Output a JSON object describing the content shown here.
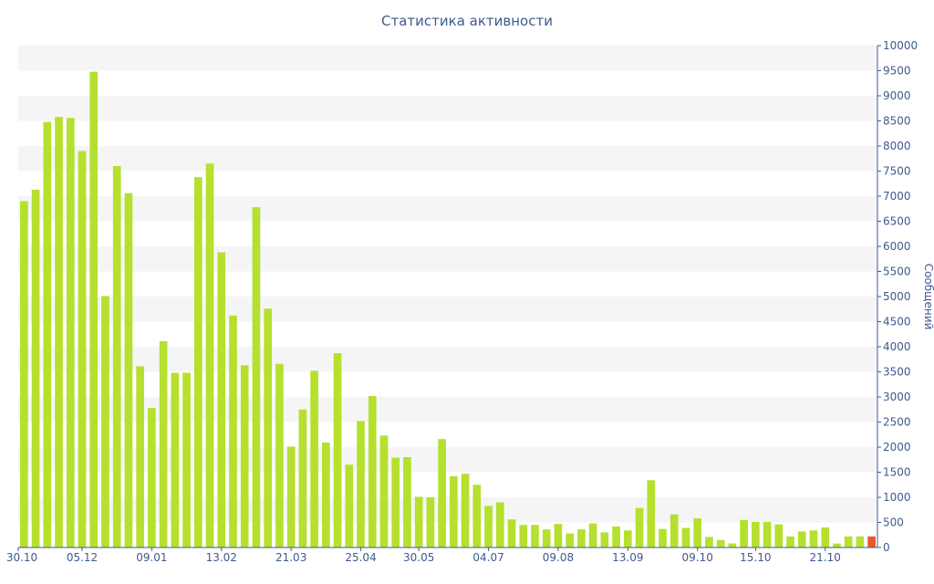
{
  "chart_data": {
    "type": "bar",
    "title": "Статистика активности",
    "ylabel": "Сообщений",
    "xlabel": "",
    "ylim": [
      0,
      10000
    ],
    "y_ticks": [
      0,
      500,
      1000,
      1500,
      2000,
      2500,
      3000,
      3500,
      4000,
      4500,
      5000,
      5500,
      6000,
      6500,
      7000,
      7500,
      8000,
      8500,
      9000,
      9500,
      10000
    ],
    "y_axis_side": "right",
    "grid": "alternating horizontal bands",
    "x_tick_labels": [
      {
        "index": 0,
        "label": "30.10"
      },
      {
        "index": 5,
        "label": "05.12"
      },
      {
        "index": 11,
        "label": "09.01"
      },
      {
        "index": 17,
        "label": "13.02"
      },
      {
        "index": 23,
        "label": "21.03"
      },
      {
        "index": 29,
        "label": "25.04"
      },
      {
        "index": 34,
        "label": "30.05"
      },
      {
        "index": 40,
        "label": "04.07"
      },
      {
        "index": 46,
        "label": "09.08"
      },
      {
        "index": 52,
        "label": "13.09"
      },
      {
        "index": 58,
        "label": "09.10"
      },
      {
        "index": 63,
        "label": "15.10"
      },
      {
        "index": 69,
        "label": "21.10"
      }
    ],
    "values": [
      6900,
      7130,
      8480,
      8580,
      8560,
      7900,
      9480,
      5010,
      7600,
      7060,
      3610,
      2780,
      4110,
      3480,
      3480,
      7380,
      7650,
      5880,
      4620,
      3630,
      6780,
      4760,
      3660,
      2010,
      2750,
      3520,
      2090,
      3870,
      1650,
      2520,
      3020,
      2230,
      1790,
      1800,
      1010,
      1000,
      2160,
      1420,
      1470,
      1250,
      830,
      900,
      560,
      450,
      450,
      360,
      470,
      280,
      360,
      480,
      300,
      420,
      340,
      790,
      1340,
      370,
      660,
      390,
      580,
      210,
      150,
      80,
      550,
      510,
      510,
      460,
      220,
      320,
      340,
      400,
      80,
      220,
      220,
      220
    ],
    "highlight_index": 73,
    "colors": {
      "bar": "#b5e02e",
      "highlight": "#e8582a",
      "band": "#f5f5f5",
      "axis": "#3e5a8f",
      "text": "#3e5a8f"
    }
  }
}
